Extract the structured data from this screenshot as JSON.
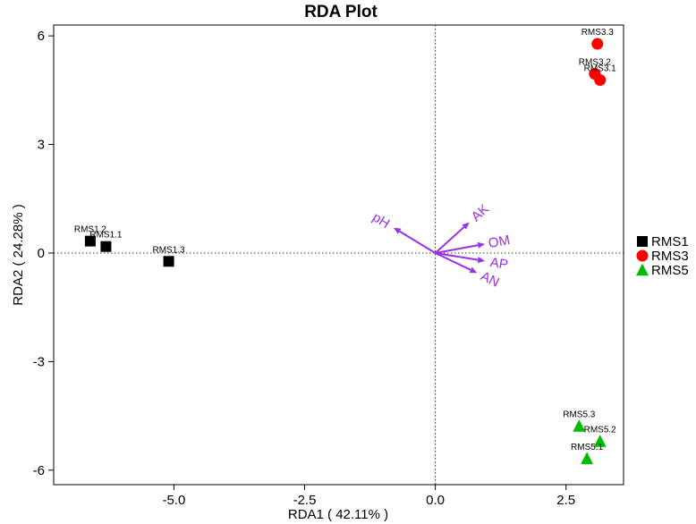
{
  "chart_data": {
    "type": "scatter",
    "title": "RDA Plot",
    "xlabel": "RDA1 ( 42.11% )",
    "ylabel": "RDA2 ( 24.28% )",
    "xlim": [
      -7.3,
      3.6
    ],
    "ylim": [
      -6.4,
      6.3
    ],
    "x_ticks": [
      -5.0,
      -2.5,
      0.0,
      2.5
    ],
    "x_tick_labels": [
      "-5.0",
      "-2.5",
      "0.0",
      "2.5"
    ],
    "y_ticks": [
      6,
      3,
      0,
      -3,
      -6
    ],
    "y_tick_labels": [
      "6",
      "3",
      "0",
      "-3",
      "-6"
    ],
    "grid": false,
    "reference_lines": {
      "x": 0,
      "y": 0,
      "style": "dotted"
    },
    "legend_placement": "right",
    "series": [
      {
        "name": "RMS1",
        "marker": "square",
        "color": "#000000",
        "points": [
          {
            "label": "RMS1.2",
            "x": -6.6,
            "y": 0.33
          },
          {
            "label": "RMS1.1",
            "x": -6.3,
            "y": 0.18
          },
          {
            "label": "RMS1.3",
            "x": -5.1,
            "y": -0.23
          }
        ]
      },
      {
        "name": "RMS3",
        "marker": "circle",
        "color": "#ff0000",
        "points": [
          {
            "label": "RMS3.3",
            "x": 3.1,
            "y": 5.78
          },
          {
            "label": "RMS3.2",
            "x": 3.05,
            "y": 4.95
          },
          {
            "label": "RMS3.1",
            "x": 3.15,
            "y": 4.78
          }
        ]
      },
      {
        "name": "RMS5",
        "marker": "triangle",
        "color": "#00bb00",
        "points": [
          {
            "label": "RMS5.3",
            "x": 2.75,
            "y": -4.78
          },
          {
            "label": "RMS5.2",
            "x": 3.15,
            "y": -5.2
          },
          {
            "label": "RMS5.1",
            "x": 2.9,
            "y": -5.68
          }
        ]
      }
    ],
    "arrows": {
      "color": "#9932e6",
      "vectors": [
        {
          "label": "pH",
          "x": -0.8,
          "y": 0.7
        },
        {
          "label": "AK",
          "x": 0.65,
          "y": 0.85
        },
        {
          "label": "OM",
          "x": 0.95,
          "y": 0.25
        },
        {
          "label": "AP",
          "x": 0.95,
          "y": -0.22
        },
        {
          "label": "AN",
          "x": 0.8,
          "y": -0.55
        }
      ]
    }
  }
}
